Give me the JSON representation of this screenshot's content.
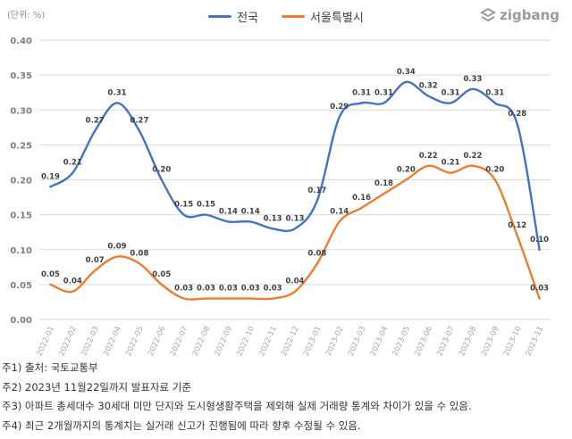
{
  "unit_label": "(단위: %)",
  "logo_text": "zigbang",
  "chart_data": {
    "type": "line",
    "title": "",
    "xlabel": "",
    "ylabel": "",
    "ylim": [
      0,
      0.4
    ],
    "yticks": [
      "0.00",
      "0.05",
      "0.10",
      "0.15",
      "0.20",
      "0.25",
      "0.30",
      "0.35",
      "0.40"
    ],
    "grid": true,
    "legend_position": "top-center",
    "categories": [
      "2022-01",
      "2022-02",
      "2022-03",
      "2022-04",
      "2022-05",
      "2022-06",
      "2022-07",
      "2022-08",
      "2022-09",
      "2022-10",
      "2022-11",
      "2022-12",
      "2023-01",
      "2023-02",
      "2023-03",
      "2023-04",
      "2023-05",
      "2023-06",
      "2023-07",
      "2023-08",
      "2023-09",
      "2023-10",
      "2023-11"
    ],
    "series": [
      {
        "name": "전국",
        "color": "#4472c4",
        "values": [
          0.19,
          0.21,
          0.27,
          0.31,
          0.27,
          0.2,
          0.15,
          0.15,
          0.14,
          0.14,
          0.13,
          0.13,
          0.17,
          0.29,
          0.31,
          0.31,
          0.34,
          0.32,
          0.31,
          0.33,
          0.31,
          0.28,
          0.1
        ],
        "labels": [
          "0.19",
          "0.21",
          "0.27",
          "0.31",
          "0.27",
          "0.20",
          "0.15",
          "0.15",
          "0.14",
          "0.14",
          "0.13",
          "0.13",
          "0.17",
          "0.29",
          "0.31",
          "0.31",
          "0.34",
          "0.32",
          "0.31",
          "0.33",
          "0.31",
          "0.28",
          "0.10"
        ]
      },
      {
        "name": "서울특별시",
        "color": "#ed7d31",
        "values": [
          0.05,
          0.04,
          0.07,
          0.09,
          0.08,
          0.05,
          0.03,
          0.03,
          0.03,
          0.03,
          0.03,
          0.04,
          0.08,
          0.14,
          0.16,
          0.18,
          0.2,
          0.22,
          0.21,
          0.22,
          0.2,
          0.12,
          0.03
        ],
        "labels": [
          "0.05",
          "0.04",
          "0.07",
          "0.09",
          "0.08",
          "0.05",
          "0.03",
          "0.03",
          "0.03",
          "0.03",
          "0.03",
          "0.04",
          "0.08",
          "0.14",
          "0.16",
          "0.18",
          "0.20",
          "0.22",
          "0.21",
          "0.22",
          "0.20",
          "0.12",
          "0.03"
        ]
      }
    ]
  },
  "notes": [
    "주1) 출처: 국토교통부",
    "주2) 2023년 11월22일까지 발표자료 기준",
    "주3) 아파트 총세대수 30세대 미만 단지와 도시형생활주택을 제외해 실제 거래량 통계와 차이가 있을 수 있음.",
    "주4) 최근 2개월까지의 통계치는 실거래 신고가 진행됨에 따라 향후 수정될 수 있음."
  ]
}
